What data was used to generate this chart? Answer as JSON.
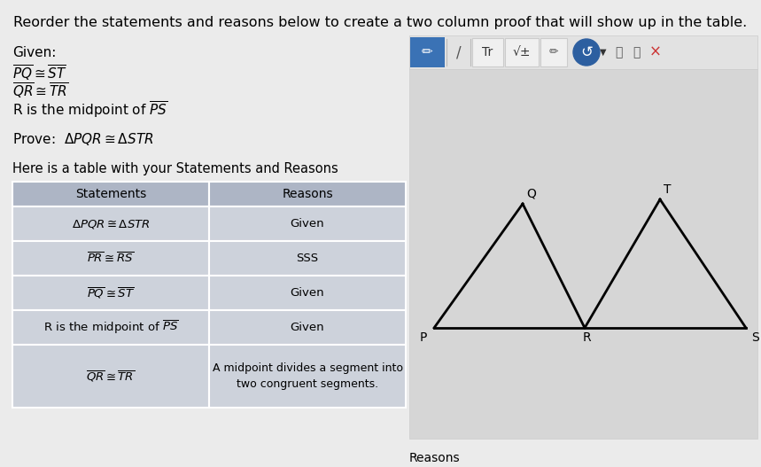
{
  "bg_color": "#ebebeb",
  "title": "Reorder the statements and reasons below to create a two column proof that will show up in the table.",
  "title_fontsize": 11.5,
  "given_label": "Given:",
  "prove_text": "Prove:  $\\Delta PQR \\cong \\Delta STR$",
  "table_intro": "Here is a table with your Statements and Reasons",
  "col_headers": [
    "Statements",
    "Reasons"
  ],
  "table_header_bg": "#adb5c5",
  "table_row_bg": "#cdd2db",
  "right_panel_bg": "#d8d8d8",
  "toolbar_bg": "#e0e0e0",
  "toolbar_btn_bg": "#f5f5f5",
  "toolbar_active_bg": "#3a72b5",
  "toolbar_circle_bg": "#2d5fa0",
  "footer_text": "Reasons"
}
